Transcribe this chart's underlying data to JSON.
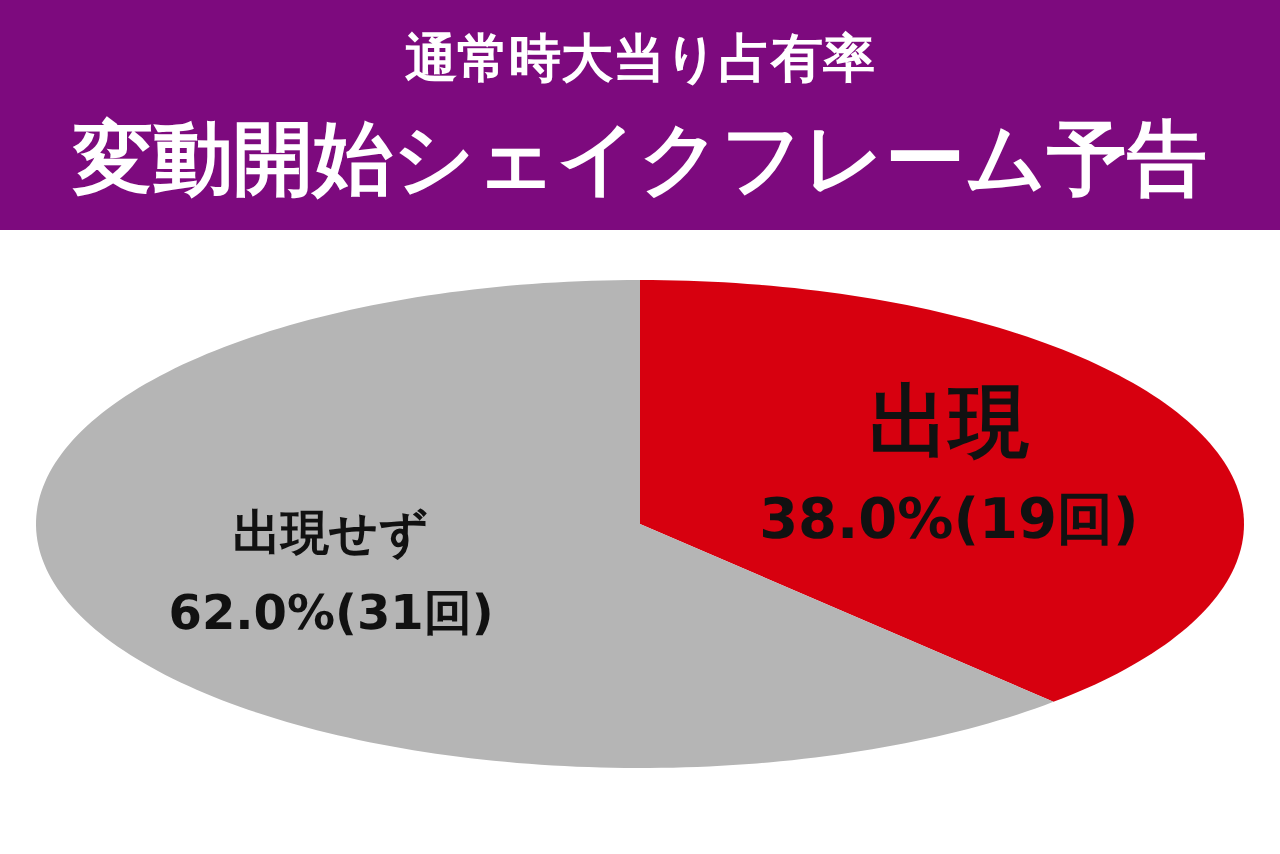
{
  "chart_data": {
    "type": "pie",
    "title": "通常時大当り占有率",
    "subtitle": "変動開始シェイクフレーム予告",
    "categories": [
      "出現",
      "出現せず"
    ],
    "values": [
      38.0,
      62.0
    ],
    "colors": [
      "#d7000f",
      "#b5b5b5"
    ],
    "value_labels": [
      "38.0%(19回)",
      "62.0%(31回)"
    ],
    "legend": false
  }
}
